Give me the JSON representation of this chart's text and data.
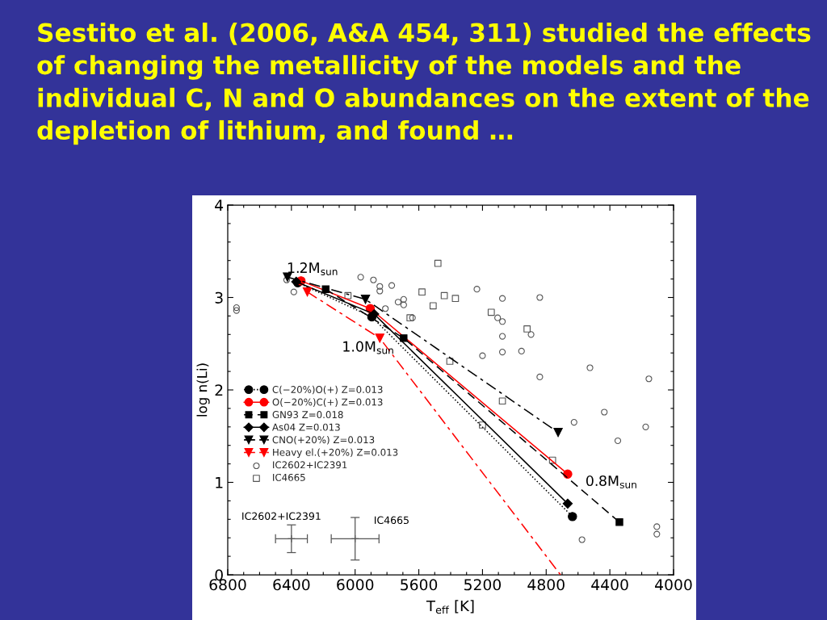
{
  "chart_data": {
    "type": "line",
    "title": "Sestito et al. (2006, A&A 454, 311) studied the effects of changing the metallicity of the models and the individual C, N and O abundances on the extent of the depletion of lithium, and found …",
    "xlabel": "T$_{eff}$ [K]",
    "ylabel": "log n(Li)",
    "xlim": [
      6800,
      4000
    ],
    "ylim": [
      0,
      4
    ],
    "xticks": [
      6800,
      {
        "value": 6700,
        "label": null
      },
      {
        "value": 6600,
        "label": null
      },
      {
        "value": 6500,
        "label": null
      },
      6400,
      {
        "value": 6300,
        "label": null
      },
      {
        "value": 6200,
        "label": null
      },
      {
        "value": 6100,
        "label": null
      },
      6000,
      {
        "value": 5900,
        "label": null
      },
      {
        "value": 5800,
        "label": null
      },
      {
        "value": 5700,
        "label": null
      },
      5600,
      {
        "value": 5500,
        "label": null
      },
      {
        "value": 5400,
        "label": null
      },
      {
        "value": 5300,
        "label": null
      },
      5200,
      {
        "value": 5100,
        "label": null
      },
      {
        "value": 5000,
        "label": null
      },
      {
        "value": 4900,
        "label": null
      },
      4800,
      {
        "value": 4700,
        "label": null
      },
      {
        "value": 4600,
        "label": null
      },
      {
        "value": 4500,
        "label": null
      },
      4400,
      {
        "value": 4300,
        "label": null
      },
      {
        "value": 4200,
        "label": null
      },
      {
        "value": 4100,
        "label": null
      },
      4000
    ],
    "yticks": [
      0,
      {
        "value": 0.2,
        "label": null
      },
      {
        "value": 0.4,
        "label": null
      },
      {
        "value": 0.6,
        "label": null
      },
      {
        "value": 0.8,
        "label": null
      },
      1,
      {
        "value": 1.2,
        "label": null
      },
      {
        "value": 1.4,
        "label": null
      },
      {
        "value": 1.6,
        "label": null
      },
      {
        "value": 1.8,
        "label": null
      },
      2,
      {
        "value": 2.2,
        "label": null
      },
      {
        "value": 2.4,
        "label": null
      },
      {
        "value": 2.6,
        "label": null
      },
      {
        "value": 2.8,
        "label": null
      },
      3,
      {
        "value": 3.2,
        "label": null
      },
      {
        "value": 3.4,
        "label": null
      },
      {
        "value": 3.6,
        "label": null
      },
      {
        "value": 3.8,
        "label": null
      },
      4
    ],
    "grid": false,
    "legend": "center left",
    "annotations": [
      {
        "text": "1.2M$_{sun}$",
        "x": 6425,
        "y": 3.22
      },
      {
        "text": "1.0M$_{sun}$",
        "x": 5845,
        "y": 2.56
      },
      {
        "text": "0.8M$_{sun}$",
        "x": 4665,
        "y": 1.09
      },
      {
        "text": "IC2602+IC2391",
        "x": 6400,
        "y": 0.39
      },
      {
        "text": "IC4665",
        "x": 6000,
        "y": 0.39
      }
    ],
    "series": [
      {
        "name": "C(−20%)O(+) Z=0.013",
        "color": "#000000",
        "marker": "circle",
        "line_style": "dotted",
        "x": [
          6360,
          5895,
          4635
        ],
        "values": [
          3.16,
          2.79,
          0.63
        ]
      },
      {
        "name": "O(−20%)C(+) Z=0.013",
        "color": "#ff0000",
        "marker": "circle",
        "line_style": "solid",
        "x": [
          6340,
          5905,
          4665
        ],
        "values": [
          3.18,
          2.88,
          1.09
        ]
      },
      {
        "name": "GN93 Z=0.018",
        "color": "#000000",
        "marker": "square",
        "line_style": "dashed",
        "x": [
          6185,
          5695,
          4340
        ],
        "values": [
          3.09,
          2.56,
          0.57
        ]
      },
      {
        "name": "As04 Z=0.013",
        "color": "#000000",
        "marker": "diamond",
        "line_style": "solid",
        "x": [
          6370,
          5880,
          4665
        ],
        "values": [
          3.17,
          2.82,
          0.77
        ]
      },
      {
        "name": "CNO(+20%) Z=0.013",
        "color": "#000000",
        "marker": "triangle",
        "line_style": "dashdot",
        "x": [
          6425,
          5935,
          4725
        ],
        "values": [
          3.22,
          2.98,
          1.54
        ]
      },
      {
        "name": "Heavy el.(+20%) Z=0.013",
        "color": "#ff0000",
        "marker": "triangle",
        "line_style": "dashdot",
        "x": [
          6300,
          5845,
          4710
        ],
        "values": [
          3.06,
          2.56,
          0
        ]
      },
      {
        "name": "IC2602+IC2391",
        "type": "scatter",
        "color": "#555555",
        "marker": "circle",
        "x": [
          6745,
          6745,
          6430,
          6385,
          5965,
          5885,
          5845,
          5845,
          5770,
          5810,
          5730,
          5695,
          5695,
          5640,
          5235,
          5075,
          4840,
          5105,
          5075,
          4895,
          5075,
          5075,
          4955,
          5200,
          4525,
          4840,
          4155,
          4435,
          4625,
          4175,
          4350,
          4105,
          4105,
          4575
        ],
        "values": [
          2.89,
          2.86,
          3.19,
          3.06,
          3.22,
          3.19,
          3.12,
          3.07,
          3.13,
          2.88,
          2.95,
          2.98,
          2.92,
          2.78,
          3.09,
          2.99,
          3.0,
          2.78,
          2.74,
          2.6,
          2.58,
          2.41,
          2.42,
          2.37,
          2.24,
          2.14,
          2.12,
          1.76,
          1.65,
          1.6,
          1.45,
          0.52,
          0.44,
          0.38
        ]
      },
      {
        "name": "IC4665",
        "type": "scatter",
        "color": "#555555",
        "marker": "square",
        "x": [
          6045,
          5655,
          5480,
          5580,
          5510,
          5440,
          5370,
          5145,
          4920,
          5405,
          5075,
          5200,
          4760
        ],
        "values": [
          3.02,
          2.78,
          3.37,
          3.06,
          2.91,
          3.02,
          2.99,
          2.84,
          2.66,
          2.31,
          1.88,
          1.62,
          1.24
        ]
      },
      {
        "type": "scatter",
        "color": "#555555",
        "marker": "cross",
        "x": [
          6400
        ],
        "values": [
          0.39
        ],
        "errors": [
          0.15
        ],
        "xerrors": [
          100
        ]
      },
      {
        "type": "scatter",
        "color": "#555555",
        "marker": "cross",
        "x": [
          6000
        ],
        "values": [
          0.39
        ],
        "errors": [
          0.23
        ],
        "xerrors": [
          150
        ]
      }
    ]
  }
}
